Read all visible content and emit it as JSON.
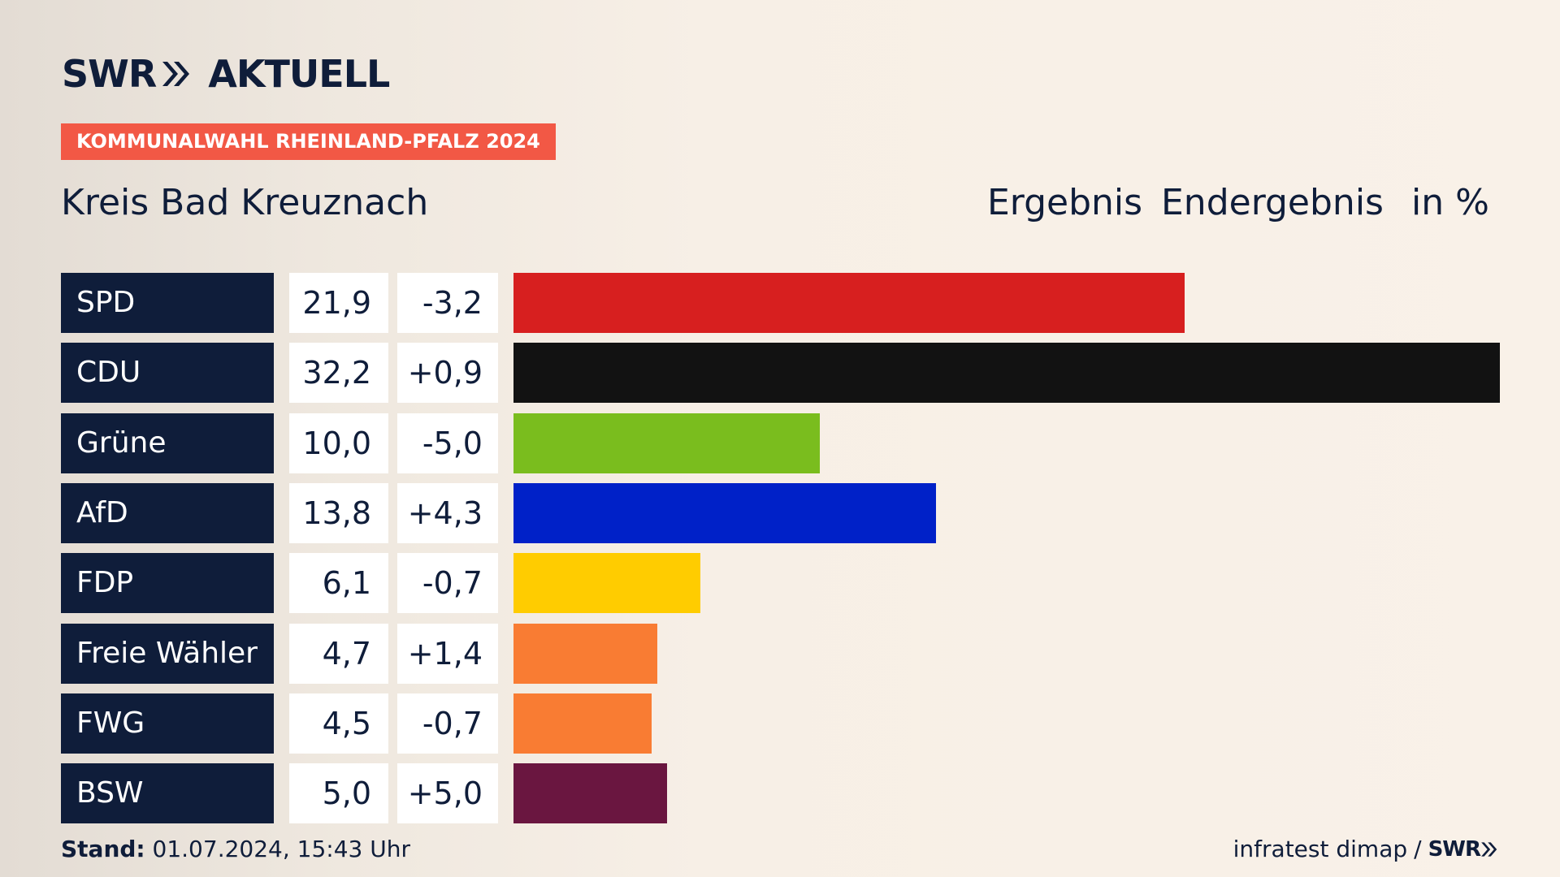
{
  "brand": {
    "logo_left": "SWR",
    "logo_right": "AKTUELL",
    "footer_logo": "SWR"
  },
  "tag": "KOMMUNALWAHL RHEINLAND-PFALZ 2024",
  "region": "Kreis Bad Kreuznach",
  "header": {
    "result": "Ergebnis",
    "status": "Endergebnis",
    "unit": "in %"
  },
  "footer": {
    "stand_label": "Stand:",
    "stand_value": "01.07.2024, 15:43 Uhr",
    "source": "infratest dimap",
    "separator": "/"
  },
  "chart_data": {
    "type": "bar",
    "orientation": "horizontal",
    "unit": "in %",
    "categories": [
      "SPD",
      "CDU",
      "Grüne",
      "AfD",
      "FDP",
      "Freie Wähler",
      "FWG",
      "BSW"
    ],
    "values": [
      21.9,
      32.2,
      10.0,
      13.8,
      6.1,
      4.7,
      4.5,
      5.0
    ],
    "values_label": [
      "21,9",
      "32,2",
      "10,0",
      "13,8",
      "6,1",
      "4,7",
      "4,5",
      "5,0"
    ],
    "diff_label": [
      "-3,2",
      "+0,9",
      "-5,0",
      "+4,3",
      "-0,7",
      "+1,4",
      "-0,7",
      "+5,0"
    ],
    "colors": [
      "#d71f1f",
      "#121212",
      "#7abd1e",
      "#0021c8",
      "#ffcc00",
      "#f97c33",
      "#f97c33",
      "#6a1640"
    ],
    "xlim": [
      0,
      32.2
    ]
  }
}
